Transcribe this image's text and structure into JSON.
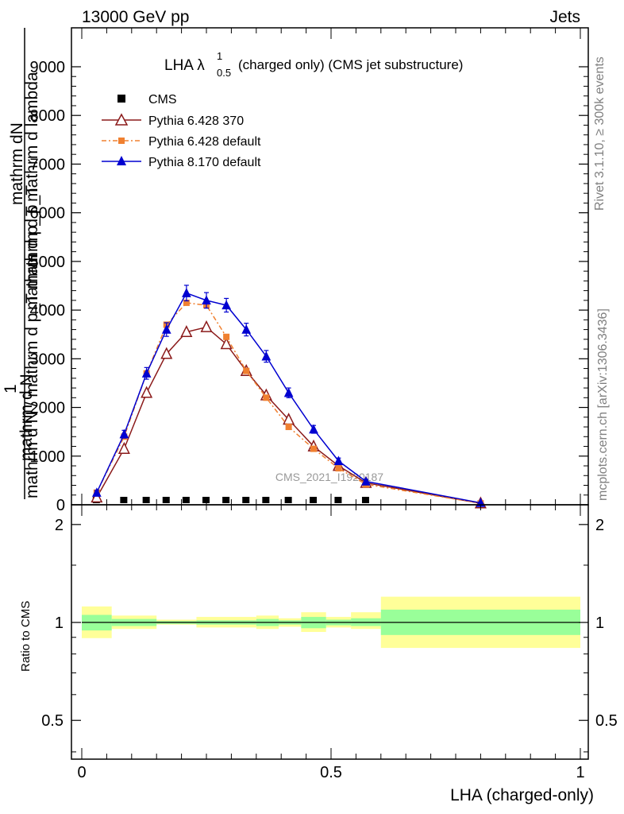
{
  "header": {
    "left": "13000 GeV pp",
    "right": "Jets"
  },
  "side_labels": {
    "rivet": "Rivet 3.1.10, ≥ 300k events",
    "mcplots": "mcplots.cern.ch [arXiv:1306.3436]"
  },
  "watermark": "CMS_2021_I1920187",
  "colors": {
    "cms": "#000000",
    "pythia6_370": "#8b1a1a",
    "pythia6_default": "#f08030",
    "pythia8": "#0000d0",
    "band_inner": "#99ff99",
    "band_outer": "#ffff99"
  },
  "chart_data": [
    {
      "type": "line",
      "title": "LHA λ",
      "title_sup": "1",
      "title_sub": "0.5",
      "title_rest": "(charged only) (CMS jet substructure)",
      "xlabel": "",
      "ylabel_top": "mathrm dN",
      "ylabel_mid": "mathrm d p_T mathrm d lambda",
      "ylabel_bottom": "mathrm d N / mathrm d p_T mathrm d p_T",
      "ylabel_numer": "1",
      "ylabel_denom": "mathrm d N",
      "xlim": [
        0,
        1
      ],
      "ylim": [
        0,
        9800
      ],
      "y_ticks": [
        0,
        1000,
        2000,
        3000,
        4000,
        5000,
        6000,
        7000,
        8000,
        9000
      ],
      "y_tick_labels": [
        "0",
        "1000",
        "2000",
        "3000",
        "4000",
        "5000",
        "6000",
        "7000",
        "8000",
        "9000"
      ],
      "legend_position": "top-left",
      "series": [
        {
          "name": "CMS",
          "marker": "square",
          "x": [
            0.03,
            0.085,
            0.13,
            0.17,
            0.21,
            0.25,
            0.29,
            0.33,
            0.37,
            0.415,
            0.465,
            0.515,
            0.57
          ],
          "y": [
            3,
            6,
            6,
            6,
            5,
            5,
            5,
            4,
            4,
            3,
            2,
            2,
            1
          ]
        },
        {
          "name": "Pythia 6.428 370",
          "marker": "open-triangle",
          "x": [
            0.03,
            0.085,
            0.13,
            0.17,
            0.21,
            0.25,
            0.29,
            0.33,
            0.37,
            0.415,
            0.465,
            0.515,
            0.57,
            0.8
          ],
          "y": [
            150,
            1150,
            2300,
            3100,
            3550,
            3650,
            3300,
            2750,
            2250,
            1750,
            1200,
            800,
            450,
            30
          ]
        },
        {
          "name": "Pythia 6.428 default",
          "marker": "filled-square",
          "x": [
            0.03,
            0.085,
            0.13,
            0.17,
            0.21,
            0.25,
            0.29,
            0.33,
            0.37,
            0.415,
            0.465,
            0.515,
            0.57,
            0.8
          ],
          "y": [
            250,
            1400,
            2700,
            3700,
            4150,
            4100,
            3450,
            2750,
            2200,
            1600,
            1150,
            750,
            420,
            30
          ]
        },
        {
          "name": "Pythia 8.170 default",
          "marker": "filled-triangle",
          "x": [
            0.03,
            0.085,
            0.13,
            0.17,
            0.21,
            0.25,
            0.29,
            0.33,
            0.37,
            0.415,
            0.465,
            0.515,
            0.57,
            0.8
          ],
          "y": [
            250,
            1450,
            2700,
            3600,
            4350,
            4200,
            4100,
            3600,
            3050,
            2300,
            1550,
            900,
            480,
            40
          ],
          "yerr": [
            40,
            80,
            120,
            140,
            160,
            160,
            140,
            130,
            120,
            100,
            80,
            60,
            40,
            10
          ]
        }
      ]
    },
    {
      "type": "area",
      "title": "",
      "xlabel": "LHA (charged-only)",
      "ylabel": "Ratio to CMS",
      "xlim": [
        0,
        1
      ],
      "ylim": [
        0.38,
        2.3
      ],
      "y_scale": "log",
      "y_ticks": [
        0.5,
        1,
        2
      ],
      "y_tick_labels": [
        "0.5",
        "1",
        "2"
      ],
      "x_ticks": [
        0,
        0.5,
        1
      ],
      "x_tick_labels": [
        "0",
        "0.5",
        "1"
      ],
      "bins": [
        {
          "x0": 0.0,
          "x1": 0.06,
          "inner": [
            0.945,
            1.055
          ],
          "outer": [
            0.895,
            1.12
          ]
        },
        {
          "x0": 0.06,
          "x1": 0.15,
          "inner": [
            0.975,
            1.025
          ],
          "outer": [
            0.955,
            1.05
          ]
        },
        {
          "x0": 0.15,
          "x1": 0.23,
          "inner": [
            0.99,
            1.01
          ],
          "outer": [
            0.985,
            1.02
          ]
        },
        {
          "x0": 0.23,
          "x1": 0.35,
          "inner": [
            0.985,
            1.015
          ],
          "outer": [
            0.965,
            1.04
          ]
        },
        {
          "x0": 0.35,
          "x1": 0.395,
          "inner": [
            0.975,
            1.025
          ],
          "outer": [
            0.955,
            1.05
          ]
        },
        {
          "x0": 0.395,
          "x1": 0.44,
          "inner": [
            0.985,
            1.015
          ],
          "outer": [
            0.97,
            1.03
          ]
        },
        {
          "x0": 0.44,
          "x1": 0.49,
          "inner": [
            0.96,
            1.04
          ],
          "outer": [
            0.935,
            1.075
          ]
        },
        {
          "x0": 0.49,
          "x1": 0.54,
          "inner": [
            0.98,
            1.02
          ],
          "outer": [
            0.965,
            1.04
          ]
        },
        {
          "x0": 0.54,
          "x1": 0.6,
          "inner": [
            0.975,
            1.03
          ],
          "outer": [
            0.955,
            1.075
          ]
        },
        {
          "x0": 0.6,
          "x1": 1.0,
          "inner": [
            0.915,
            1.095
          ],
          "outer": [
            0.835,
            1.2
          ]
        }
      ]
    }
  ]
}
